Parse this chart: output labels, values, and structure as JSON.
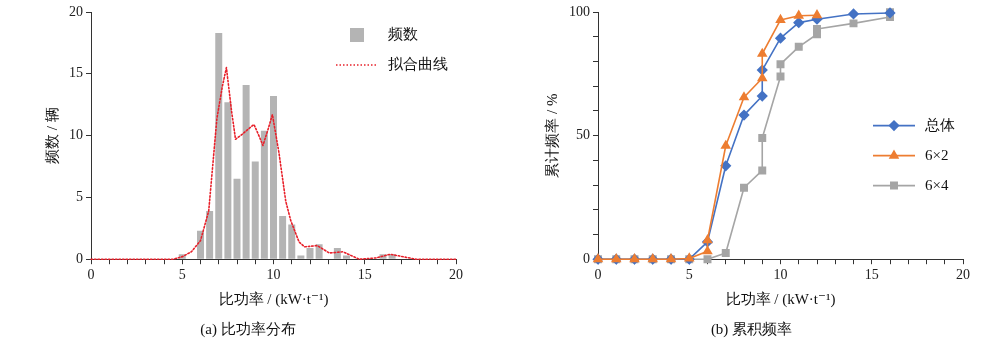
{
  "chart_data": [
    {
      "type": "histogram",
      "title": "(a) 比功率分布",
      "xlabel": "比功率 / (kW·t⁻¹)",
      "ylabel": "频数 / 辆",
      "xlim": [
        0,
        20
      ],
      "xticks": [
        0,
        {
          "value": 1,
          "label": null
        },
        {
          "value": 2,
          "label": null
        },
        {
          "value": 3,
          "label": null
        },
        {
          "value": 4,
          "label": null
        },
        5,
        {
          "value": 6,
          "label": null
        },
        {
          "value": 7,
          "label": null
        },
        {
          "value": 8,
          "label": null
        },
        {
          "value": 9,
          "label": null
        },
        10,
        {
          "value": 11,
          "label": null
        },
        {
          "value": 12,
          "label": null
        },
        {
          "value": 13,
          "label": null
        },
        {
          "value": 14,
          "label": null
        },
        15,
        {
          "value": 16,
          "label": null
        },
        {
          "value": 17,
          "label": null
        },
        {
          "value": 18,
          "label": null
        },
        {
          "value": 19,
          "label": null
        },
        20
      ],
      "ylim": [
        0,
        20
      ],
      "yticks": [
        0,
        5,
        10,
        15,
        20
      ],
      "legend": "top right",
      "series": [
        {
          "name": "频数",
          "color": "#b4b4b4",
          "bins": [
            4.75,
            5.25,
            5.75,
            6.25,
            6.75,
            7.25,
            7.75,
            8.25,
            8.75,
            9.25,
            9.75,
            10.25,
            10.75,
            11.25,
            11.75,
            12.25,
            12.75,
            13.25,
            13.75,
            14.25,
            14.75,
            15.25,
            15.75,
            16.25,
            16.75
          ],
          "values": [
            0.4,
            0,
            2.3,
            3.9,
            18.3,
            12.7,
            6.5,
            14.1,
            7.9,
            10.4,
            13.2,
            3.5,
            2.8,
            0.3,
            0.9,
            1.2,
            0,
            0.9,
            0.3,
            0,
            0,
            0,
            0.4,
            0.4
          ]
        },
        {
          "name": "拟合曲线",
          "type": "line",
          "color": "#e8202a",
          "line_style": "dotted",
          "marker": "none",
          "x": [
            0,
            4.5,
            5,
            5.5,
            6,
            6.45,
            6.9,
            7.2,
            7.42,
            7.7,
            7.92,
            8.28,
            8.6,
            8.93,
            9.2,
            9.42,
            9.7,
            9.94,
            10.3,
            10.67,
            10.95,
            11.4,
            11.7,
            12.4,
            13.06,
            13.8,
            14.7,
            15.6,
            16.4,
            17.8,
            20
          ],
          "values": [
            0,
            0,
            0.2,
            0.6,
            1.5,
            3.9,
            11.4,
            14,
            15.5,
            12,
            9.7,
            10.1,
            10.5,
            10.9,
            10,
            9.2,
            10.5,
            11.7,
            8.6,
            4.7,
            3.1,
            1.4,
            1,
            1.1,
            0.5,
            0.6,
            0,
            0.1,
            0.4,
            0,
            0
          ]
        }
      ]
    },
    {
      "type": "line",
      "title": "(b) 累积频率",
      "xlabel": "比功率 / (kW·t⁻¹)",
      "ylabel": "累计频率 / %",
      "xlim": [
        0,
        20
      ],
      "xticks": [
        0,
        {
          "value": 1,
          "label": null
        },
        {
          "value": 2,
          "label": null
        },
        {
          "value": 3,
          "label": null
        },
        {
          "value": 4,
          "label": null
        },
        5,
        {
          "value": 6,
          "label": null
        },
        {
          "value": 7,
          "label": null
        },
        {
          "value": 8,
          "label": null
        },
        {
          "value": 9,
          "label": null
        },
        10,
        {
          "value": 11,
          "label": null
        },
        {
          "value": 12,
          "label": null
        },
        {
          "value": 13,
          "label": null
        },
        {
          "value": 14,
          "label": null
        },
        15,
        {
          "value": 16,
          "label": null
        },
        {
          "value": 17,
          "label": null
        },
        {
          "value": 18,
          "label": null
        },
        {
          "value": 19,
          "label": null
        },
        20
      ],
      "ylim": [
        0,
        100
      ],
      "yticks": [
        0,
        {
          "value": 10,
          "label": null
        },
        {
          "value": 20,
          "label": null
        },
        {
          "value": 30,
          "label": null
        },
        {
          "value": 40,
          "label": null
        },
        50,
        {
          "value": 60,
          "label": null
        },
        {
          "value": 70,
          "label": null
        },
        {
          "value": 80,
          "label": null
        },
        {
          "value": 90,
          "label": null
        },
        100
      ],
      "legend": "right",
      "series": [
        {
          "name": "总体",
          "color": "#4472c4",
          "marker": "diamond",
          "x": [
            0,
            1,
            2,
            3,
            4,
            5,
            6,
            7,
            8,
            9,
            9,
            10,
            11,
            12,
            14,
            16
          ],
          "values": [
            0,
            0,
            0,
            0,
            0,
            0,
            7,
            37.8,
            58.3,
            66,
            76.5,
            89.4,
            95.7,
            97.1,
            99.2,
            99.6
          ]
        },
        {
          "name": "6×2",
          "color": "#ed7d31",
          "marker": "triangle",
          "x": [
            0,
            1,
            2,
            3,
            4,
            5,
            6,
            6,
            7,
            8,
            9,
            9,
            10,
            11,
            12
          ],
          "values": [
            0,
            0,
            0,
            0,
            0,
            0.3,
            3.2,
            7.7,
            45.9,
            65.5,
            73.2,
            83.1,
            96.8,
            98.5,
            98.7
          ]
        },
        {
          "name": "6×4",
          "color": "#a5a5a5",
          "marker": "square",
          "x": [
            0,
            1,
            2,
            3,
            4,
            5,
            6,
            7,
            8,
            9,
            9,
            10,
            10,
            11,
            12,
            12,
            14,
            16,
            16
          ],
          "values": [
            0,
            0,
            0,
            0,
            0,
            0,
            0,
            2.5,
            28.9,
            35.9,
            49,
            73.9,
            78.9,
            85.9,
            91,
            93.1,
            95.4,
            98,
            99.9
          ]
        }
      ]
    }
  ]
}
